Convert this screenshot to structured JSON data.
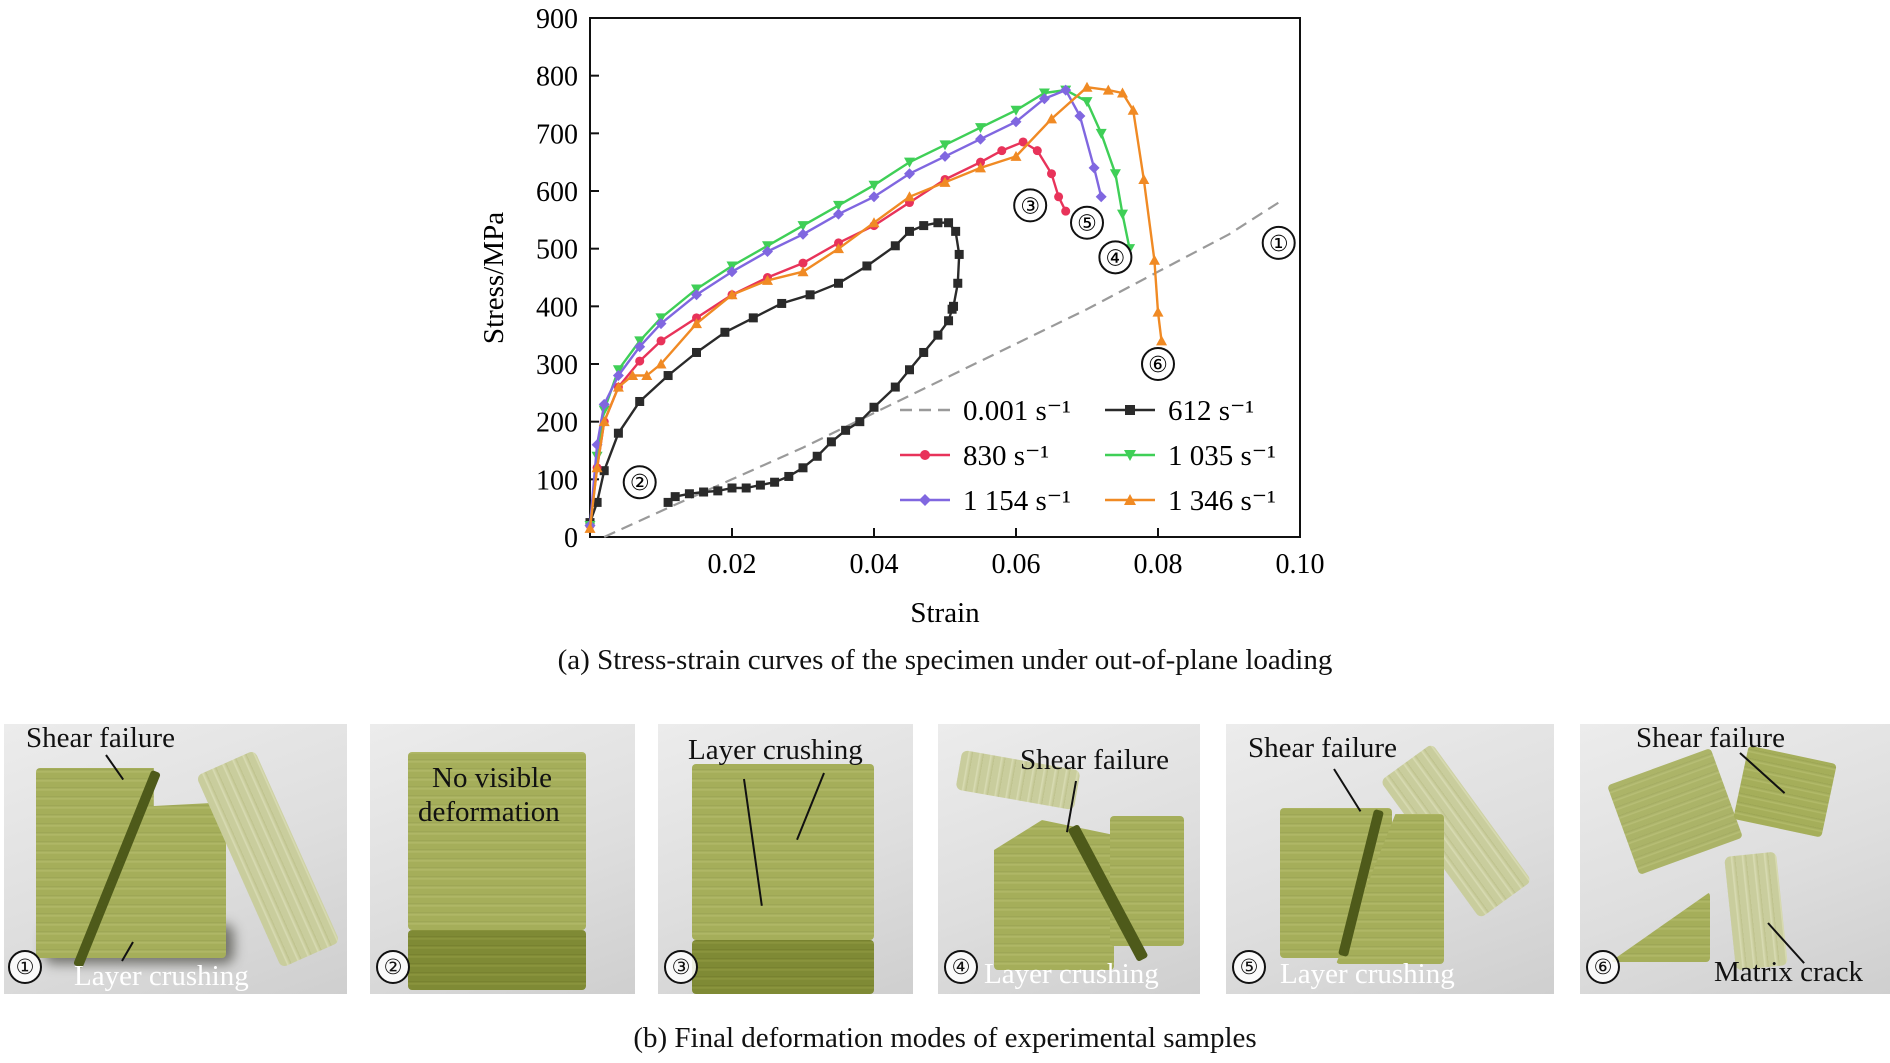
{
  "chart_data": {
    "type": "line",
    "xlabel": "Strain",
    "ylabel": "Stress/MPa",
    "xlim": [
      0,
      0.1
    ],
    "ylim": [
      0,
      900
    ],
    "xticks": [
      0.02,
      0.04,
      0.06,
      0.08,
      0.1
    ],
    "xtick_labels": [
      "0.02",
      "0.04",
      "0.06",
      "0.08",
      "0.10"
    ],
    "yticks": [
      0,
      100,
      200,
      300,
      400,
      500,
      600,
      700,
      800,
      900
    ],
    "ytick_labels": [
      "0",
      "100",
      "200",
      "300",
      "400",
      "500",
      "600",
      "700",
      "800",
      "900"
    ],
    "grid": false,
    "legend_position": "bottom-right",
    "series": [
      {
        "name": "0.001 s⁻¹",
        "color": "#9a9a9a",
        "marker": "none",
        "dash": true,
        "x": [
          0.002,
          0.01,
          0.02,
          0.03,
          0.04,
          0.05,
          0.06,
          0.07,
          0.08,
          0.09,
          0.097
        ],
        "y": [
          0,
          45,
          100,
          155,
          215,
          275,
          335,
          395,
          460,
          525,
          580
        ]
      },
      {
        "name": "612 s⁻¹",
        "color": "#2a2a2a",
        "marker": "square",
        "x": [
          0.0,
          0.001,
          0.002,
          0.004,
          0.007,
          0.011,
          0.015,
          0.019,
          0.023,
          0.027,
          0.031,
          0.035,
          0.039,
          0.043,
          0.045,
          0.047,
          0.049,
          0.0505,
          0.0515,
          0.052,
          0.0518,
          0.0512,
          0.051,
          0.0505,
          0.049,
          0.047,
          0.045,
          0.043,
          0.04,
          0.038,
          0.036,
          0.034,
          0.032,
          0.03,
          0.028,
          0.026,
          0.024,
          0.022,
          0.02,
          0.018,
          0.016,
          0.014,
          0.012,
          0.011
        ],
        "y": [
          25,
          60,
          115,
          180,
          235,
          280,
          320,
          355,
          380,
          405,
          420,
          440,
          470,
          505,
          530,
          540,
          545,
          545,
          530,
          490,
          440,
          400,
          395,
          375,
          350,
          320,
          290,
          260,
          225,
          200,
          185,
          165,
          140,
          120,
          105,
          95,
          90,
          85,
          85,
          80,
          78,
          75,
          70,
          60
        ]
      },
      {
        "name": "830 s⁻¹",
        "color": "#e8335a",
        "marker": "circle",
        "x": [
          0.0,
          0.001,
          0.002,
          0.004,
          0.007,
          0.01,
          0.015,
          0.02,
          0.025,
          0.03,
          0.035,
          0.04,
          0.045,
          0.05,
          0.055,
          0.058,
          0.061,
          0.063,
          0.065,
          0.066,
          0.067
        ],
        "y": [
          20,
          120,
          200,
          260,
          305,
          340,
          380,
          420,
          450,
          475,
          510,
          540,
          580,
          620,
          650,
          670,
          685,
          670,
          630,
          590,
          565
        ]
      },
      {
        "name": "1 035 s⁻¹",
        "color": "#3fcf57",
        "marker": "triangle-down",
        "x": [
          0.0,
          0.001,
          0.002,
          0.004,
          0.007,
          0.01,
          0.015,
          0.02,
          0.025,
          0.03,
          0.035,
          0.04,
          0.045,
          0.05,
          0.055,
          0.06,
          0.064,
          0.067,
          0.07,
          0.072,
          0.074,
          0.075,
          0.076
        ],
        "y": [
          20,
          140,
          220,
          290,
          340,
          380,
          430,
          470,
          505,
          540,
          575,
          610,
          650,
          680,
          710,
          740,
          770,
          775,
          755,
          700,
          630,
          560,
          500
        ]
      },
      {
        "name": "1 154 s⁻¹",
        "color": "#8067e0",
        "marker": "diamond",
        "x": [
          0.0,
          0.001,
          0.002,
          0.004,
          0.007,
          0.01,
          0.015,
          0.02,
          0.025,
          0.03,
          0.035,
          0.04,
          0.045,
          0.05,
          0.055,
          0.06,
          0.064,
          0.067,
          0.069,
          0.071,
          0.072
        ],
        "y": [
          20,
          160,
          230,
          280,
          330,
          370,
          420,
          460,
          495,
          525,
          560,
          590,
          630,
          660,
          690,
          720,
          760,
          775,
          730,
          640,
          590
        ]
      },
      {
        "name": "1 346 s⁻¹",
        "color": "#f08a24",
        "marker": "triangle-up",
        "x": [
          0.0,
          0.001,
          0.002,
          0.004,
          0.006,
          0.008,
          0.01,
          0.015,
          0.02,
          0.025,
          0.03,
          0.035,
          0.04,
          0.045,
          0.05,
          0.055,
          0.06,
          0.065,
          0.07,
          0.073,
          0.075,
          0.0765,
          0.078,
          0.0795,
          0.08,
          0.0805
        ],
        "y": [
          15,
          120,
          200,
          260,
          280,
          280,
          300,
          370,
          420,
          445,
          460,
          500,
          545,
          590,
          615,
          640,
          660,
          725,
          780,
          775,
          770,
          740,
          620,
          480,
          390,
          340
        ]
      }
    ],
    "annotations": [
      {
        "text": "①",
        "x": 0.097,
        "y": 510
      },
      {
        "text": "②",
        "x": 0.007,
        "y": 95
      },
      {
        "text": "③",
        "x": 0.062,
        "y": 575
      },
      {
        "text": "④",
        "x": 0.074,
        "y": 485
      },
      {
        "text": "⑤",
        "x": 0.07,
        "y": 545
      },
      {
        "text": "⑥",
        "x": 0.08,
        "y": 300
      }
    ]
  },
  "captions": {
    "a": "(a) Stress-strain curves of the specimen under out-of-plane loading",
    "b": "(b) Final deformation modes of experimental samples"
  },
  "photos": [
    {
      "marker": "①",
      "labels": [
        "Shear failure",
        "Layer crushing"
      ]
    },
    {
      "marker": "②",
      "labels": [
        "No visible",
        "deformation"
      ]
    },
    {
      "marker": "③",
      "labels": [
        "Layer crushing"
      ]
    },
    {
      "marker": "④",
      "labels": [
        "Shear failure",
        "Layer crushing"
      ]
    },
    {
      "marker": "⑤",
      "labels": [
        "Shear failure",
        "Layer crushing"
      ]
    },
    {
      "marker": "⑥",
      "labels": [
        "Shear failure",
        "Matrix crack"
      ]
    }
  ]
}
